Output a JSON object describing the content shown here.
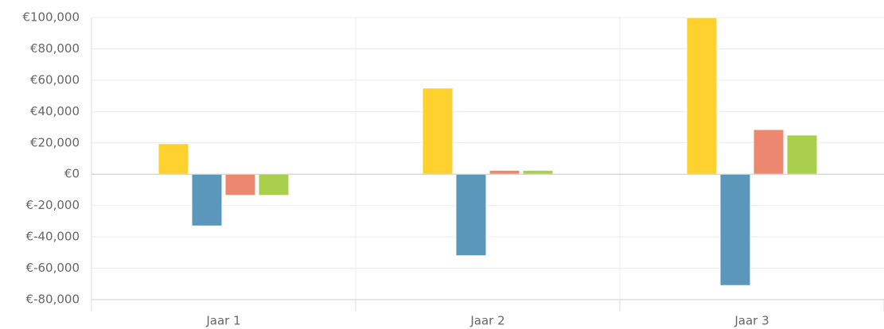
{
  "chart_data": {
    "type": "bar",
    "categories": [
      "Jaar 1",
      "Jaar 2",
      "Jaar 3"
    ],
    "series": [
      {
        "color": "#ffd12e",
        "values": [
          19500,
          55000,
          100000
        ]
      },
      {
        "color": "#5b96bb",
        "values": [
          -33000,
          -52000,
          -71000
        ]
      },
      {
        "color": "#ec8870",
        "values": [
          -13500,
          2500,
          28500
        ]
      },
      {
        "color": "#a9cf4d",
        "values": [
          -13500,
          2500,
          25000
        ]
      }
    ],
    "ylim": [
      -80000,
      100000
    ],
    "yticks": [
      {
        "value": -80000,
        "label": "€-80,000"
      },
      {
        "value": -60000,
        "label": "€-60,000"
      },
      {
        "value": -40000,
        "label": "€-40,000"
      },
      {
        "value": -20000,
        "label": "€-20,000"
      },
      {
        "value": 0,
        "label": "€0"
      },
      {
        "value": 20000,
        "label": "€20,000"
      },
      {
        "value": 40000,
        "label": "€40,000"
      },
      {
        "value": 60000,
        "label": "€60,000"
      },
      {
        "value": 80000,
        "label": "€80,000"
      },
      {
        "value": 100000,
        "label": "€100,000"
      }
    ],
    "grid": true
  }
}
